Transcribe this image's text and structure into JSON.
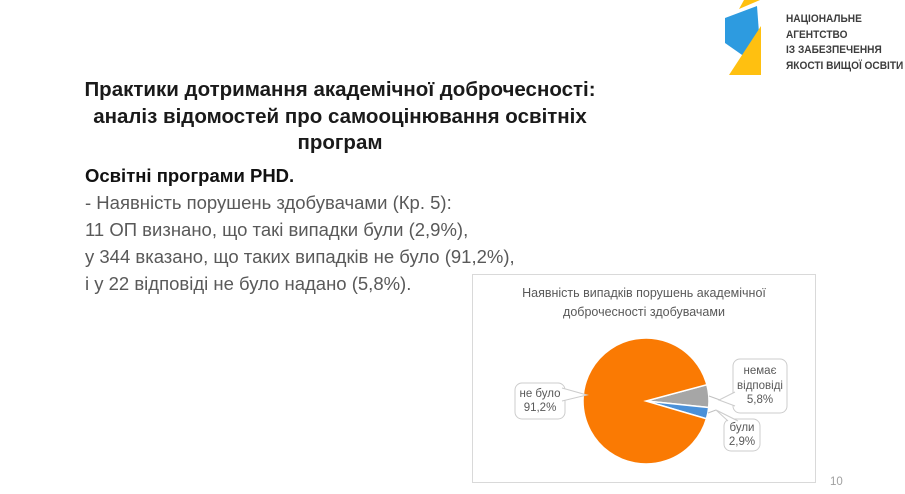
{
  "slide": {
    "title_line1": "Практики дотримання академічної доброчесності:",
    "title_line2": "аналіз відомостей про самооцінювання освітніх програм",
    "page_number": "10"
  },
  "logo": {
    "text_lines": [
      "НАЦІОНАЛЬНЕ",
      "АГЕНТСТВО",
      "ІЗ ЗАБЕЗПЕЧЕННЯ",
      "ЯКОСТІ ВИЩОЇ ОСВІТИ"
    ],
    "colors": {
      "blue": "#2d9be0",
      "yellow": "#ffc010"
    }
  },
  "body": {
    "heading": "Освітні програми PHD.",
    "lines": [
      "- Наявність порушень здобувачами (Кр. 5):",
      "11 ОП визнано, що такі випадки були (2,9%),",
      "у 344 вказано, що таких випадків не було (91,2%),",
      "і у 22 відповіді не було надано (5,8%)."
    ]
  },
  "chart_data": {
    "type": "pie",
    "title": "Наявність випадків порушень академічної доброчесності здобувачами",
    "slices": [
      {
        "label": "не було",
        "value": 91.2,
        "display": "91,2%",
        "color": "#fa7a03"
      },
      {
        "label": "немає відповіді",
        "value": 5.8,
        "display": "5,8%",
        "color": "#a6a6a6"
      },
      {
        "label": "були",
        "value": 2.9,
        "display": "2,9%",
        "color": "#4a90d8"
      }
    ],
    "layout": {
      "start_angle_deg": -15,
      "draw_order": [
        1,
        2,
        0
      ],
      "legend": "callouts",
      "accent_colors": {
        "callout_border": "#cccccc",
        "leader_line": "#c0c0c0"
      }
    }
  }
}
